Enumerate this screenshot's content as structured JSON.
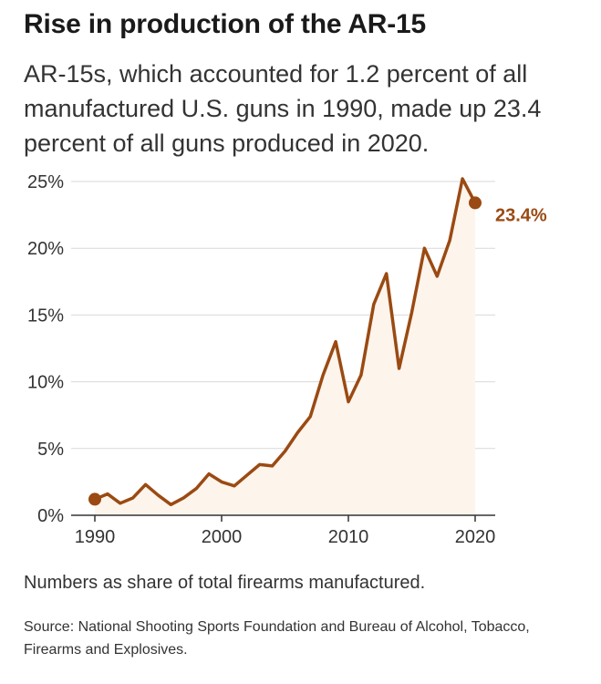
{
  "header": {
    "title": "Rise in production of the AR-15",
    "subtitle": "AR-15s, which accounted for 1.2 percent of all manufactured U.S. guns in 1990, made up 23.4 percent of all guns produced in 2020."
  },
  "footer": {
    "note": "Numbers as share of total firearms manufactured.",
    "source": "Source: National Shooting Sports Foundation and Bureau of Alcohol, Tobacco, Firearms and Explosives."
  },
  "colors": {
    "line": "#9a4a12",
    "fill": "#fdf4ec",
    "grid": "#d9d9d9"
  },
  "chart_data": {
    "type": "line",
    "title": "Rise in production of the AR-15",
    "xlabel": "",
    "ylabel": "",
    "xlim": [
      1990,
      2020
    ],
    "ylim": [
      0,
      25
    ],
    "x_ticks": [
      1990,
      2000,
      2010,
      2020
    ],
    "x_tick_labels": [
      "1990",
      "2000",
      "2010",
      "2020"
    ],
    "y_ticks": [
      0,
      5,
      10,
      15,
      20,
      25
    ],
    "y_tick_labels": [
      "0%",
      "5%",
      "10%",
      "15%",
      "20%",
      "25%"
    ],
    "grid": true,
    "end_label": "23.4%",
    "series": [
      {
        "name": "AR-15 share of firearms manufactured (%)",
        "x": [
          1990,
          1991,
          1992,
          1993,
          1994,
          1995,
          1996,
          1997,
          1998,
          1999,
          2000,
          2001,
          2002,
          2003,
          2004,
          2005,
          2006,
          2007,
          2008,
          2009,
          2010,
          2011,
          2012,
          2013,
          2014,
          2015,
          2016,
          2017,
          2018,
          2019,
          2020
        ],
        "values": [
          1.2,
          1.6,
          0.9,
          1.3,
          2.3,
          1.5,
          0.8,
          1.3,
          2.0,
          3.1,
          2.5,
          2.2,
          3.0,
          3.8,
          3.7,
          4.8,
          6.2,
          7.4,
          10.5,
          13.0,
          8.5,
          10.5,
          15.8,
          18.1,
          11.0,
          15.2,
          20.0,
          17.9,
          20.6,
          25.2,
          23.4
        ]
      }
    ]
  }
}
